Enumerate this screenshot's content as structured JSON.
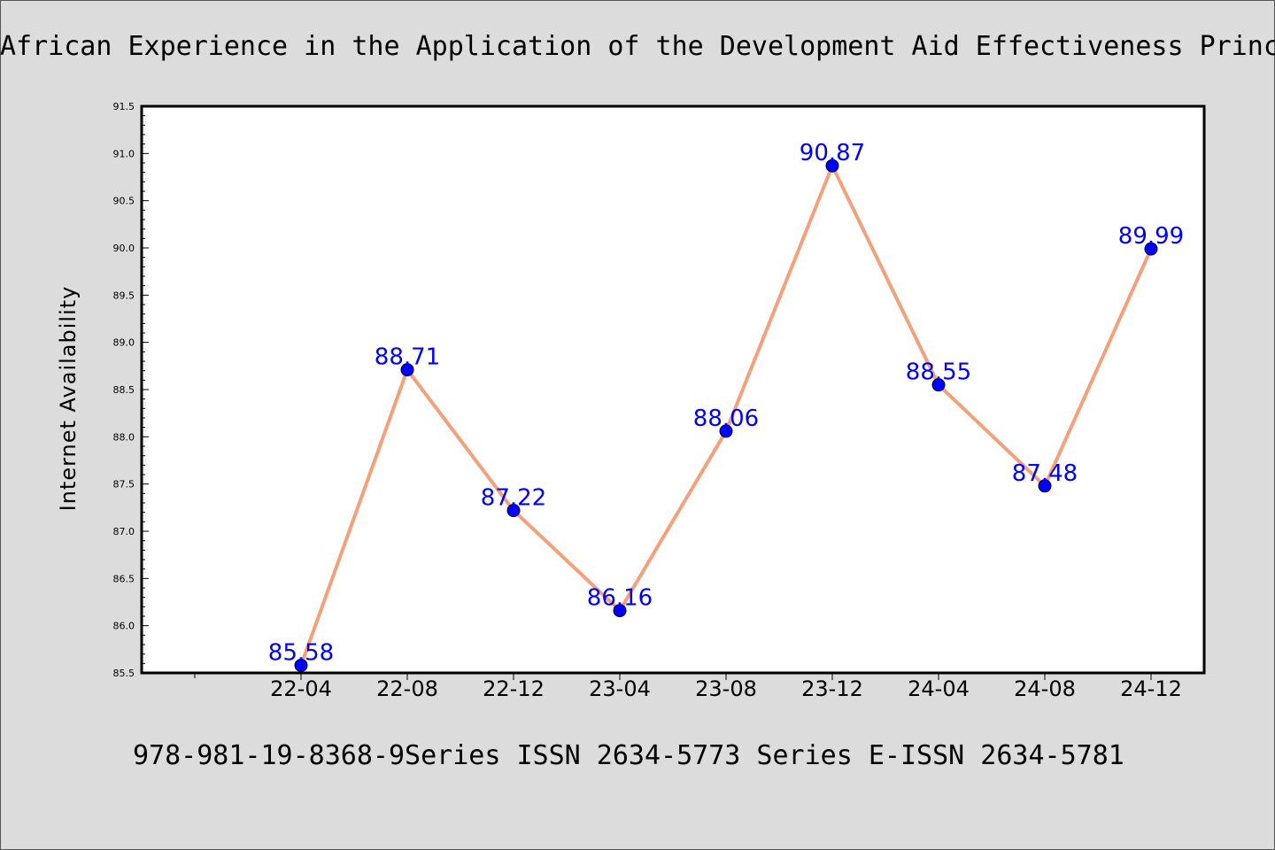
{
  "chart_data": {
    "type": "line",
    "title": "African Experience in the Application of the Development Aid Effectiveness Princ",
    "subtitle": "978-981-19-8368-9Series ISSN 2634-5773 Series E-ISSN 2634-5781",
    "xlabel": "",
    "ylabel": "Internet Availability",
    "categories": [
      "22-04",
      "22-08",
      "22-12",
      "23-04",
      "23-08",
      "23-12",
      "24-04",
      "24-08",
      "24-12"
    ],
    "values": [
      85.58,
      88.71,
      87.22,
      86.16,
      88.06,
      90.87,
      88.55,
      87.48,
      89.99
    ],
    "data_labels": [
      "85.58",
      "88.71",
      "87.22",
      "86.16",
      "88.06",
      "90.87",
      "88.55",
      "87.48",
      "89.99"
    ],
    "ylim": [
      85.5,
      91.5
    ],
    "yticks": [
      "85.5",
      "86.0",
      "86.5",
      "87.0",
      "87.5",
      "88.0",
      "88.5",
      "89.0",
      "89.5",
      "90.0",
      "90.5",
      "91.0",
      "91.5"
    ],
    "grid": false,
    "colors": {
      "line": "#f4a07a",
      "marker": "#0000ff",
      "data_label": "#0000ff",
      "plot_background": "#ffffff",
      "figure_background": "#dcdcdc"
    }
  }
}
